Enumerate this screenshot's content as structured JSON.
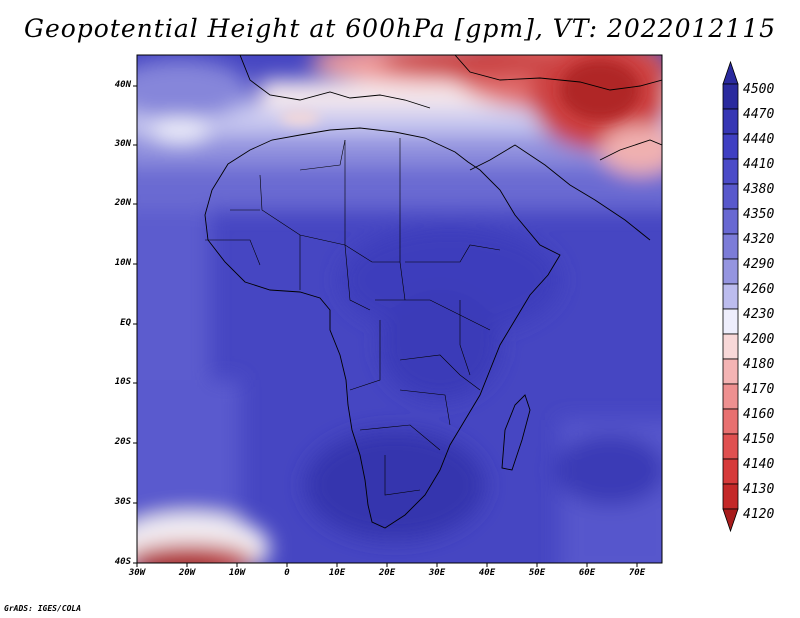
{
  "title": "Geopotential Height at 600hPa [gpm], VT: 2022012115",
  "footer": "GrADS: IGES/COLA",
  "y_axis_labels": [
    "40N",
    "30N",
    "20N",
    "10N",
    "EQ",
    "10S",
    "20S",
    "30S",
    "40S"
  ],
  "x_axis_labels": [
    "30W",
    "20W",
    "10W",
    "0",
    "10E",
    "20E",
    "30E",
    "40E",
    "50E",
    "60E",
    "70E"
  ],
  "colorbar": {
    "levels": [
      "4500",
      "4470",
      "4440",
      "4410",
      "4380",
      "4350",
      "4320",
      "4290",
      "4260",
      "4230",
      "4200",
      "4180",
      "4170",
      "4160",
      "4150",
      "4140",
      "4130",
      "4120"
    ],
    "colors": [
      "#2a2a9e",
      "#3636b4",
      "#3f3fc2",
      "#4b4bc8",
      "#5858cc",
      "#6868d2",
      "#7c7cd8",
      "#9595e0",
      "#bcbcee",
      "#eeeefc",
      "#f8d8d8",
      "#f4b4b4",
      "#ee9090",
      "#e87070",
      "#e05050",
      "#d63a3a",
      "#c42828",
      "#a81c1c"
    ]
  }
}
